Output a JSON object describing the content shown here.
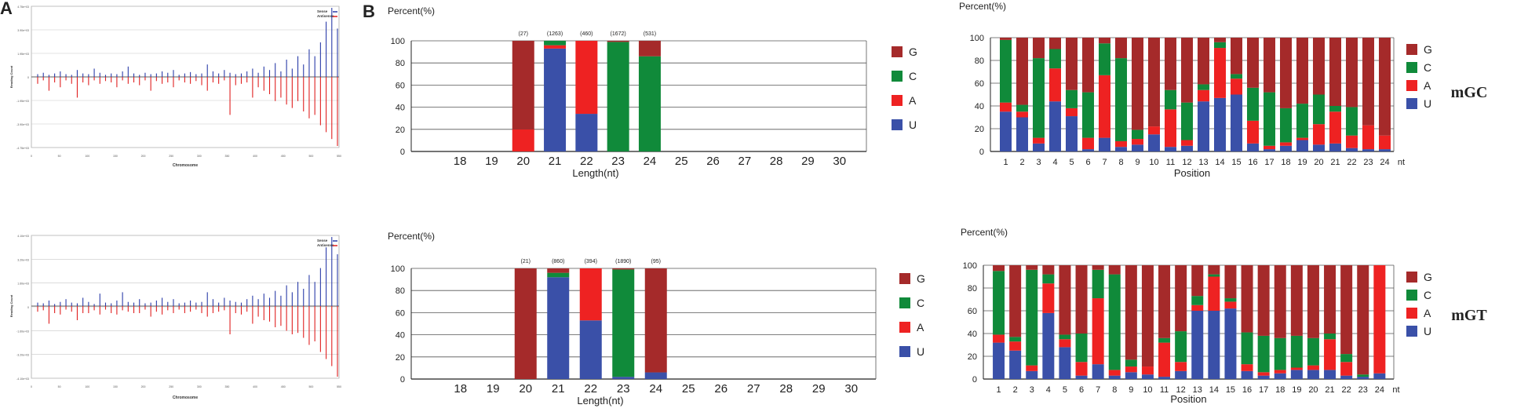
{
  "panel_letters": {
    "a": "A",
    "b": "B"
  },
  "row_labels": [
    "mGC",
    "mGT"
  ],
  "colors": {
    "G": "#a52a2a",
    "C": "#108a3a",
    "A": "#ee2222",
    "U": "#3a50a8",
    "sense": "#2a3ca8",
    "antisense": "#e02020"
  },
  "legend_labels": [
    "G",
    "C",
    "A",
    "U"
  ],
  "chart_data": [
    {
      "id": "mGC-chromosome",
      "type": "bar",
      "xlabel": "Chromosome",
      "ylabel": "Reading Count",
      "legend": [
        "Sense",
        "Antisense"
      ],
      "legend_position": "top-right",
      "ytick_labels": [
        "4.75e+03",
        "3.90e+03",
        "1.95e+03",
        "0",
        "-1.95e+03",
        "-3.90e+03",
        "-4.75e+03"
      ],
      "xtick_labels": [
        "0",
        "50",
        "100",
        "150",
        "200",
        "250",
        "300",
        "350",
        "400",
        "450",
        "500",
        "550"
      ],
      "sense_heights": [
        0.04,
        0.06,
        0.03,
        0.05,
        0.08,
        0.04,
        0.03,
        0.1,
        0.05,
        0.04,
        0.12,
        0.06,
        0.03,
        0.05,
        0.04,
        0.08,
        0.15,
        0.05,
        0.03,
        0.06,
        0.04,
        0.05,
        0.08,
        0.06,
        0.1,
        0.03,
        0.05,
        0.07,
        0.04,
        0.05,
        0.18,
        0.08,
        0.05,
        0.1,
        0.06,
        0.04,
        0.05,
        0.08,
        0.12,
        0.06,
        0.15,
        0.1,
        0.2,
        0.08,
        0.25,
        0.12,
        0.3,
        0.18,
        0.4,
        0.3,
        0.5,
        0.8,
        1.0,
        0.7
      ],
      "antisense_heights": [
        0.1,
        0.05,
        0.2,
        0.08,
        0.15,
        0.05,
        0.1,
        0.3,
        0.08,
        0.12,
        0.05,
        0.1,
        0.06,
        0.08,
        0.15,
        0.05,
        0.1,
        0.08,
        0.12,
        0.05,
        0.2,
        0.06,
        0.1,
        0.08,
        0.15,
        0.05,
        0.08,
        0.1,
        0.06,
        0.12,
        0.2,
        0.08,
        0.1,
        0.05,
        0.55,
        0.12,
        0.1,
        0.08,
        0.3,
        0.15,
        0.2,
        0.25,
        0.35,
        0.3,
        0.4,
        0.45,
        0.35,
        0.5,
        0.6,
        0.55,
        0.7,
        0.8,
        0.9,
        1.0
      ]
    },
    {
      "id": "mGT-chromosome",
      "type": "bar",
      "xlabel": "Chromosome",
      "ylabel": "Reading Count",
      "legend": [
        "Sense",
        "Antisense"
      ],
      "legend_position": "top-right",
      "ytick_labels": [
        "4.10e+03",
        "3.20e+03",
        "1.60e+03",
        "0",
        "-1.60e+03",
        "-3.20e+03",
        "-4.10e+03"
      ],
      "xtick_labels": [
        "0",
        "50",
        "100",
        "150",
        "200",
        "250",
        "300",
        "350",
        "400",
        "450",
        "500",
        "550"
      ],
      "sense_heights": [
        0.05,
        0.04,
        0.08,
        0.03,
        0.06,
        0.1,
        0.05,
        0.04,
        0.12,
        0.06,
        0.03,
        0.18,
        0.05,
        0.04,
        0.08,
        0.2,
        0.06,
        0.05,
        0.1,
        0.04,
        0.05,
        0.08,
        0.12,
        0.06,
        0.1,
        0.04,
        0.05,
        0.08,
        0.05,
        0.06,
        0.2,
        0.1,
        0.05,
        0.12,
        0.08,
        0.06,
        0.05,
        0.1,
        0.15,
        0.1,
        0.18,
        0.12,
        0.22,
        0.15,
        0.3,
        0.2,
        0.35,
        0.25,
        0.45,
        0.35,
        0.55,
        0.85,
        1.0,
        0.75
      ],
      "antisense_heights": [
        0.08,
        0.06,
        0.25,
        0.1,
        0.12,
        0.05,
        0.08,
        0.2,
        0.1,
        0.1,
        0.06,
        0.12,
        0.05,
        0.1,
        0.12,
        0.06,
        0.08,
        0.1,
        0.1,
        0.05,
        0.15,
        0.08,
        0.12,
        0.06,
        0.1,
        0.05,
        0.1,
        0.08,
        0.05,
        0.1,
        0.15,
        0.1,
        0.08,
        0.06,
        0.4,
        0.1,
        0.12,
        0.08,
        0.25,
        0.15,
        0.2,
        0.22,
        0.3,
        0.28,
        0.35,
        0.4,
        0.38,
        0.45,
        0.55,
        0.5,
        0.65,
        0.75,
        0.85,
        1.0
      ]
    },
    {
      "id": "mGC-length",
      "type": "bar",
      "stacked": true,
      "xlabel": "Length(nt)",
      "ylabel": "Percent(%)",
      "ylim": [
        0,
        100
      ],
      "yticks": [
        0,
        20,
        40,
        60,
        80,
        100
      ],
      "categories": [
        "18",
        "19",
        "20",
        "21",
        "22",
        "23",
        "24",
        "25",
        "26",
        "27",
        "28",
        "29",
        "30"
      ],
      "counts": [
        "",
        "",
        "(27)",
        "(1263)",
        "(460)",
        "(1672)",
        "(531)",
        "",
        "",
        "",
        "",
        "",
        ""
      ],
      "series": [
        {
          "name": "U",
          "values": [
            0,
            0,
            0,
            93,
            34,
            0,
            0,
            0,
            0,
            0,
            0,
            0,
            0
          ]
        },
        {
          "name": "A",
          "values": [
            0,
            0,
            20,
            3,
            66,
            0,
            0,
            0,
            0,
            0,
            0,
            0,
            0
          ]
        },
        {
          "name": "C",
          "values": [
            0,
            0,
            0,
            4,
            0,
            99,
            86,
            0,
            0,
            0,
            0,
            0,
            0
          ]
        },
        {
          "name": "G",
          "values": [
            0,
            0,
            80,
            0,
            0,
            1,
            14,
            0,
            0,
            0,
            0,
            0,
            0
          ]
        }
      ]
    },
    {
      "id": "mGT-length",
      "type": "bar",
      "stacked": true,
      "xlabel": "Length(nt)",
      "ylabel": "Percent(%)",
      "ylim": [
        0,
        100
      ],
      "yticks": [
        0,
        20,
        40,
        60,
        80,
        100
      ],
      "categories": [
        "18",
        "19",
        "20",
        "21",
        "22",
        "23",
        "24",
        "25",
        "26",
        "27",
        "28",
        "29",
        "30"
      ],
      "counts": [
        "",
        "",
        "(21)",
        "(860)",
        "(394)",
        "(1890)",
        "(95)",
        "",
        "",
        "",
        "",
        "",
        ""
      ],
      "series": [
        {
          "name": "U",
          "values": [
            0,
            0,
            0,
            92,
            53,
            2,
            6,
            0,
            0,
            0,
            0,
            0,
            0
          ]
        },
        {
          "name": "A",
          "values": [
            0,
            0,
            0,
            0,
            47,
            0,
            0,
            0,
            0,
            0,
            0,
            0,
            0
          ]
        },
        {
          "name": "C",
          "values": [
            0,
            0,
            0,
            4,
            0,
            97,
            0,
            0,
            0,
            0,
            0,
            0,
            0
          ]
        },
        {
          "name": "G",
          "values": [
            0,
            0,
            100,
            4,
            0,
            1,
            94,
            0,
            0,
            0,
            0,
            0,
            0
          ]
        }
      ]
    },
    {
      "id": "mGC-position",
      "type": "bar",
      "stacked": true,
      "xlabel": "Position",
      "ylabel": "Percent(%)",
      "ylim": [
        0,
        100
      ],
      "yticks": [
        0,
        20,
        40,
        60,
        80,
        100
      ],
      "categories": [
        "1",
        "2",
        "3",
        "4",
        "5",
        "6",
        "7",
        "8",
        "9",
        "10",
        "11",
        "12",
        "13",
        "14",
        "15",
        "16",
        "17",
        "18",
        "19",
        "20",
        "21",
        "22",
        "23",
        "24"
      ],
      "extra_tick": "nt",
      "series": [
        {
          "name": "U",
          "values": [
            35,
            30,
            7,
            44,
            31,
            2,
            12,
            4,
            6,
            15,
            4,
            5,
            44,
            47,
            50,
            7,
            2,
            5,
            10,
            6,
            7,
            3,
            2,
            2
          ]
        },
        {
          "name": "A",
          "values": [
            8,
            5,
            5,
            29,
            7,
            10,
            55,
            5,
            5,
            7,
            33,
            5,
            10,
            44,
            14,
            20,
            3,
            3,
            2,
            18,
            28,
            11,
            21,
            12
          ]
        },
        {
          "name": "C",
          "values": [
            55,
            6,
            70,
            17,
            16,
            40,
            28,
            73,
            8,
            0,
            17,
            33,
            5,
            5,
            4,
            29,
            47,
            30,
            30,
            26,
            5,
            25,
            0,
            0
          ]
        },
        {
          "name": "G",
          "values": [
            2,
            59,
            18,
            10,
            46,
            48,
            5,
            18,
            81,
            78,
            46,
            57,
            41,
            4,
            32,
            44,
            48,
            62,
            58,
            50,
            60,
            61,
            77,
            86
          ]
        }
      ]
    },
    {
      "id": "mGT-position",
      "type": "bar",
      "stacked": true,
      "xlabel": "Position",
      "ylabel": "Percent(%)",
      "ylim": [
        0,
        100
      ],
      "yticks": [
        0,
        20,
        40,
        60,
        80,
        100
      ],
      "categories": [
        "1",
        "2",
        "3",
        "4",
        "5",
        "6",
        "7",
        "8",
        "9",
        "10",
        "11",
        "12",
        "13",
        "14",
        "15",
        "16",
        "17",
        "18",
        "19",
        "20",
        "21",
        "22",
        "23",
        "24"
      ],
      "extra_tick": "nt",
      "series": [
        {
          "name": "U",
          "values": [
            32,
            25,
            7,
            58,
            28,
            3,
            13,
            3,
            6,
            4,
            2,
            7,
            60,
            60,
            62,
            7,
            3,
            5,
            8,
            8,
            8,
            3,
            2,
            5
          ]
        },
        {
          "name": "A",
          "values": [
            7,
            8,
            5,
            26,
            7,
            12,
            58,
            5,
            5,
            7,
            30,
            8,
            5,
            30,
            6,
            6,
            3,
            3,
            2,
            4,
            27,
            12,
            0,
            95
          ]
        },
        {
          "name": "C",
          "values": [
            56,
            4,
            84,
            8,
            4,
            25,
            25,
            84,
            6,
            0,
            4,
            27,
            8,
            2,
            3,
            28,
            32,
            28,
            28,
            24,
            5,
            7,
            2,
            0
          ]
        },
        {
          "name": "G",
          "values": [
            5,
            63,
            4,
            8,
            61,
            60,
            4,
            8,
            83,
            89,
            64,
            58,
            27,
            8,
            29,
            59,
            62,
            64,
            62,
            64,
            60,
            78,
            96,
            0
          ]
        }
      ]
    }
  ]
}
